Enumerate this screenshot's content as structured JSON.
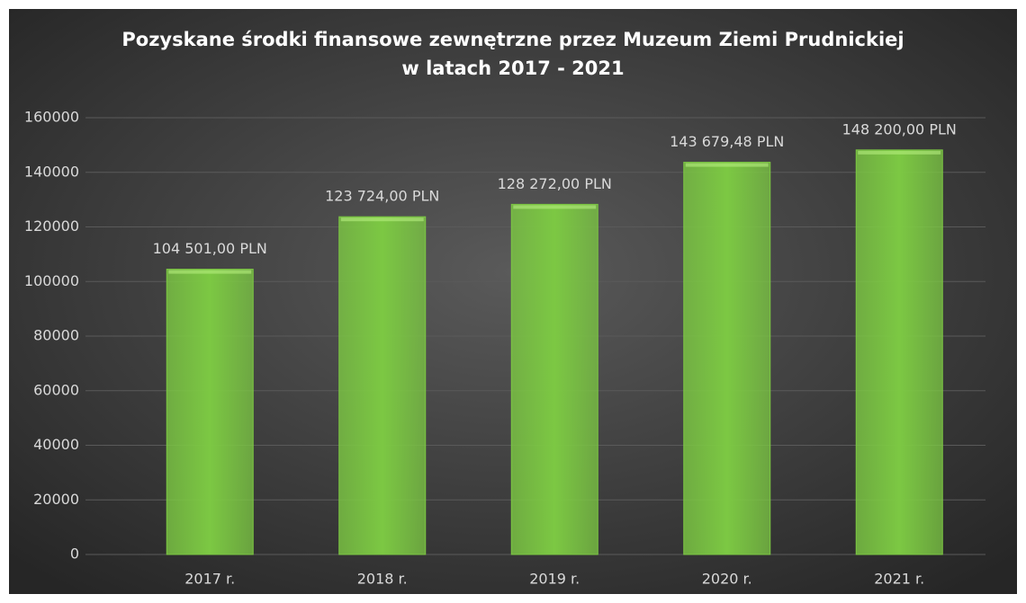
{
  "chart_data": {
    "type": "bar",
    "title": [
      "Pozyskane środki finansowe zewnętrzne przez Muzeum Ziemi Prudnickiej",
      "w latach 2017 - 2021"
    ],
    "categories": [
      "2017 r.",
      "2018 r.",
      "2019 r.",
      "2020 r.",
      "2021 r."
    ],
    "values": [
      104501,
      123724,
      128272,
      143679.48,
      148200
    ],
    "value_labels": [
      "104 501,00 PLN",
      "123 724,00 PLN",
      "128 272,00 PLN",
      "143 679,48 PLN",
      "148 200,00 PLN"
    ],
    "color": "#7cc843",
    "ylim": [
      0,
      160000
    ],
    "yticks": [
      0,
      20000,
      40000,
      60000,
      80000,
      100000,
      120000,
      140000,
      160000
    ],
    "grid": true
  }
}
